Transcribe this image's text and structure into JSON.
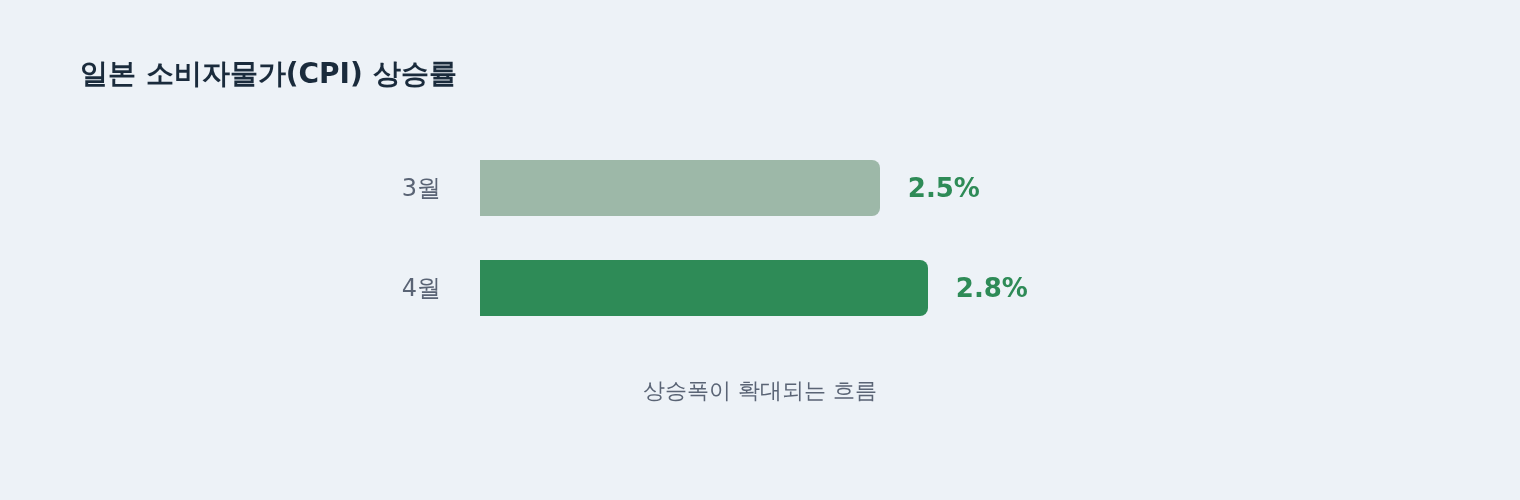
{
  "chart_data": {
    "type": "bar",
    "orientation": "horizontal",
    "title": "일본 소비자물가(CPI) 상승률",
    "categories": [
      "3월",
      "4월"
    ],
    "values": [
      2.5,
      2.8
    ],
    "colors": [
      "#9db8a8",
      "#2e8b57"
    ],
    "value_labels": [
      "2.5%",
      "2.8%"
    ],
    "annotations": [
      "상승폭이 확대되는 흐름"
    ]
  }
}
